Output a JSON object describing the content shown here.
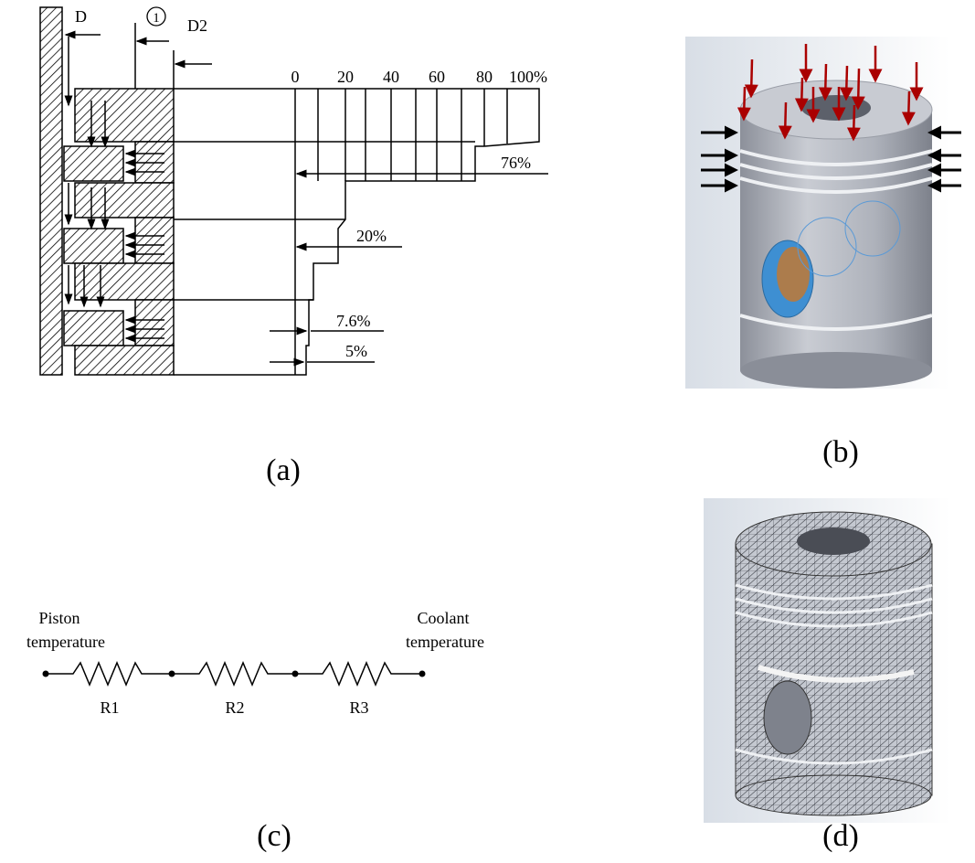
{
  "panel_a": {
    "caption": "(a)",
    "labels": {
      "d": "D",
      "circle": "1",
      "d2": "D2"
    },
    "scale": [
      "0",
      "20",
      "40",
      "60",
      "80",
      "100%"
    ],
    "shares": [
      "76%",
      "20%",
      "7.6%",
      "5%"
    ]
  },
  "panel_b": {
    "caption": "(b)"
  },
  "panel_c": {
    "caption": "(c)",
    "left": [
      "Piston",
      "temperature"
    ],
    "right": [
      "Coolant",
      "temperature"
    ],
    "resistors": [
      "R1",
      "R2",
      "R3"
    ]
  },
  "panel_d": {
    "caption": "(d)"
  }
}
